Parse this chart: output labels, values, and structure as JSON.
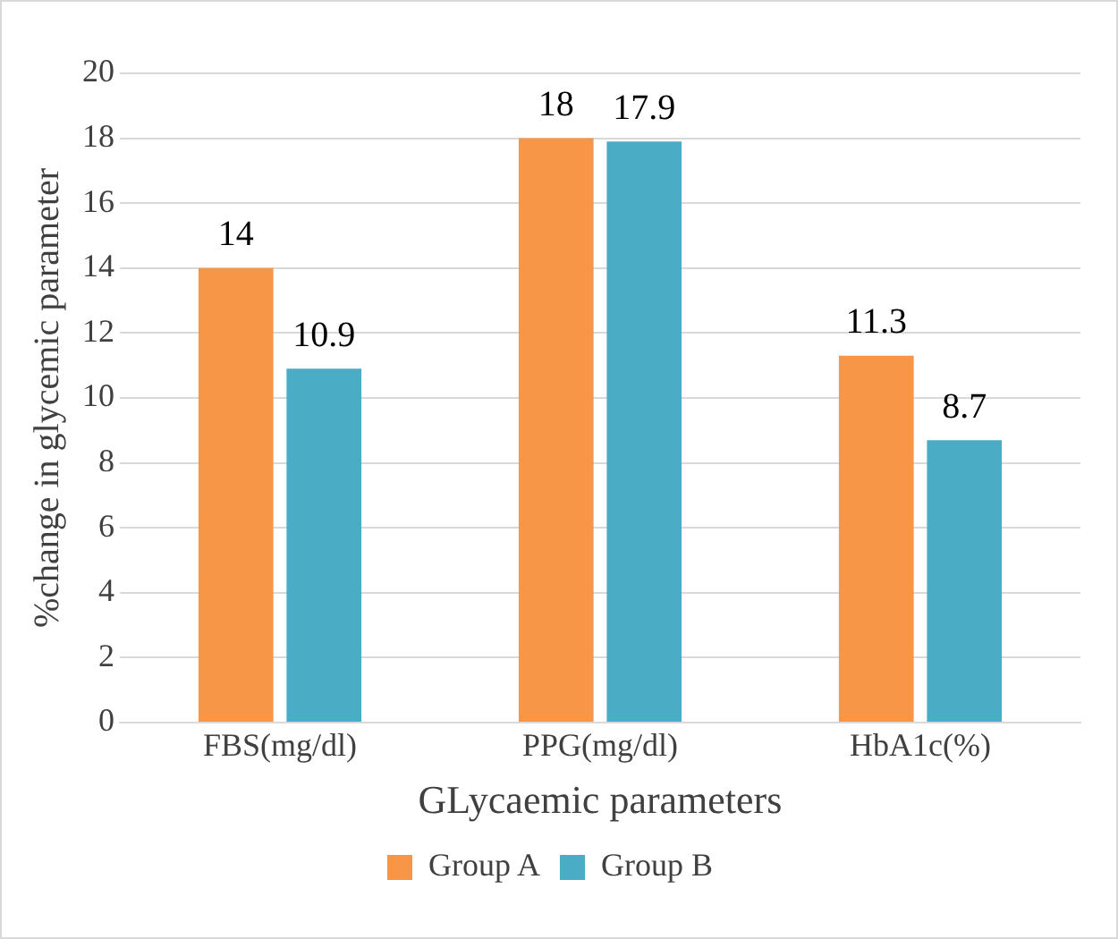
{
  "chart_data": {
    "type": "bar",
    "xlabel": "GLycaemic parameters",
    "ylabel": "%change in glycemic parameter",
    "categories": [
      "FBS(mg/dl)",
      "PPG(mg/dl)",
      "HbA1c(%)"
    ],
    "series": [
      {
        "name": "Group A",
        "color": "#f79646",
        "values": [
          14,
          18,
          11.3
        ]
      },
      {
        "name": "Group B",
        "color": "#4bacc6",
        "values": [
          10.9,
          17.9,
          8.7
        ]
      }
    ],
    "ylim": [
      0,
      20
    ],
    "yticks": [
      0,
      2,
      4,
      6,
      8,
      10,
      12,
      14,
      16,
      18,
      20
    ],
    "grid": "y",
    "legend": "bottom",
    "data_labels": true
  }
}
